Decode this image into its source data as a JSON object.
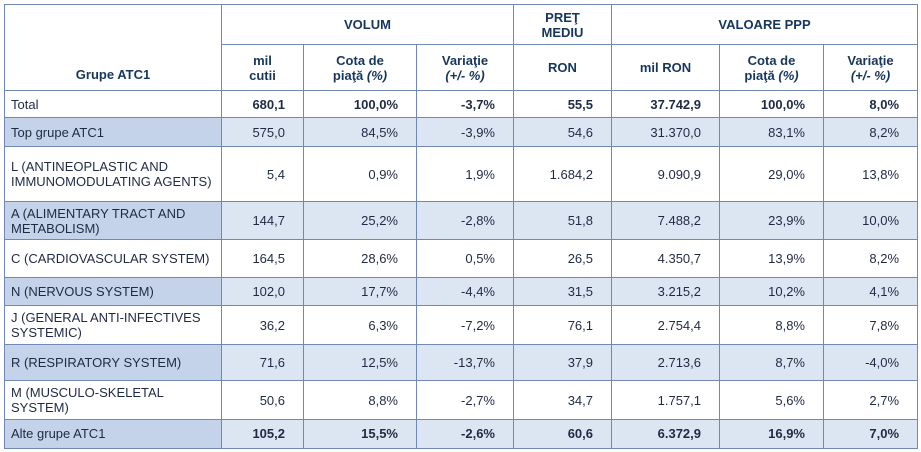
{
  "header": {
    "group_label": "Grupe ATC1",
    "volum": "VOLUM",
    "pret_line1": "PREŢ",
    "pret_line2": "MEDIU",
    "valoare": "VALOARE PPP",
    "sub": {
      "mil_cutii_1": "mil",
      "mil_cutii_2": "cutii",
      "cota_1": "Cota de",
      "cota_2a": "piaţă",
      "cota_2b": "(%)",
      "variatie_1": "Variaţie",
      "variatie_2": "(+/- %)",
      "ron": "RON",
      "mil_ron": "mil RON",
      "cota2_1": "Cota de",
      "cota2_2a": "piaţă",
      "cota2_2b": "(%)",
      "variatie2_1": "Variaţie",
      "variatie2_2": "(+/- %)"
    }
  },
  "rows": [
    {
      "label": "Total",
      "mil_cutii": "680,1",
      "cota_vol": "100,0%",
      "var_vol": "-3,7%",
      "ron": "55,5",
      "mil_ron": "37.742,9",
      "cota_val": "100,0%",
      "var_val": "8,0%"
    },
    {
      "label": "Top grupe ATC1",
      "mil_cutii": "575,0",
      "cota_vol": "84,5%",
      "var_vol": "-3,9%",
      "ron": "54,6",
      "mil_ron": "31.370,0",
      "cota_val": "83,1%",
      "var_val": "8,2%"
    },
    {
      "label": "L (ANTINEOPLASTIC AND IMMUNOMODULATING AGENTS)",
      "mil_cutii": "5,4",
      "cota_vol": "0,9%",
      "var_vol": "1,9%",
      "ron": "1.684,2",
      "mil_ron": "9.090,9",
      "cota_val": "29,0%",
      "var_val": "13,8%"
    },
    {
      "label": "A (ALIMENTARY TRACT AND METABOLISM)",
      "mil_cutii": "144,7",
      "cota_vol": "25,2%",
      "var_vol": "-2,8%",
      "ron": "51,8",
      "mil_ron": "7.488,2",
      "cota_val": "23,9%",
      "var_val": "10,0%"
    },
    {
      "label": "C (CARDIOVASCULAR SYSTEM)",
      "mil_cutii": "164,5",
      "cota_vol": "28,6%",
      "var_vol": "0,5%",
      "ron": "26,5",
      "mil_ron": "4.350,7",
      "cota_val": "13,9%",
      "var_val": "8,2%"
    },
    {
      "label": "N (NERVOUS SYSTEM)",
      "mil_cutii": "102,0",
      "cota_vol": "17,7%",
      "var_vol": "-4,4%",
      "ron": "31,5",
      "mil_ron": "3.215,2",
      "cota_val": "10,2%",
      "var_val": "4,1%"
    },
    {
      "label": "J (GENERAL ANTI-INFECTIVES SYSTEMIC)",
      "mil_cutii": "36,2",
      "cota_vol": "6,3%",
      "var_vol": "-7,2%",
      "ron": "76,1",
      "mil_ron": "2.754,4",
      "cota_val": "8,8%",
      "var_val": "7,8%"
    },
    {
      "label": "R (RESPIRATORY SYSTEM)",
      "mil_cutii": "71,6",
      "cota_vol": "12,5%",
      "var_vol": "-13,7%",
      "ron": "37,9",
      "mil_ron": "2.713,6",
      "cota_val": "8,7%",
      "var_val": "-4,0%"
    },
    {
      "label": "M (MUSCULO-SKELETAL SYSTEM)",
      "mil_cutii": "50,6",
      "cota_vol": "8,8%",
      "var_vol": "-2,7%",
      "ron": "34,7",
      "mil_ron": "1.757,1",
      "cota_val": "5,6%",
      "var_val": "2,7%"
    },
    {
      "label": "Alte grupe ATC1",
      "mil_cutii": "105,2",
      "cota_vol": "15,5%",
      "var_vol": "-2,6%",
      "ron": "60,6",
      "mil_ron": "6.372,9",
      "cota_val": "16,9%",
      "var_val": "7,0%"
    }
  ]
}
